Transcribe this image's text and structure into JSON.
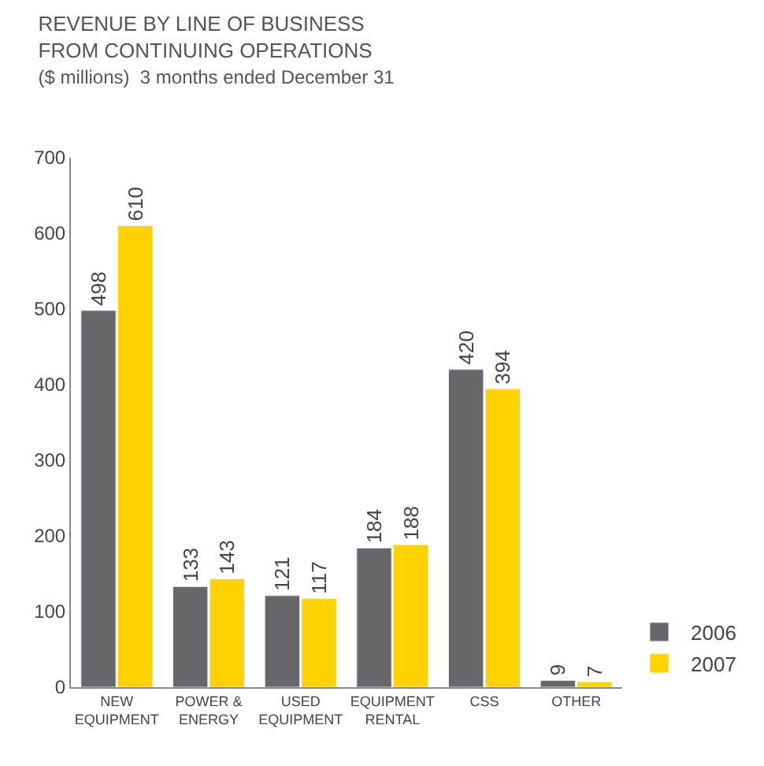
{
  "chart_data": {
    "type": "bar",
    "title": "REVENUE BY LINE OF BUSINESS\nFROM CONTINUING OPERATIONS",
    "subtitle": "($ millions)  3 months ended December 31",
    "categories": [
      "NEW EQUIPMENT",
      "POWER & ENERGY",
      "USED EQUIPMENT",
      "EQUIPMENT RENTAL",
      "CSS",
      "OTHER"
    ],
    "series": [
      {
        "name": "2006",
        "color": "#66666b",
        "values": [
          498,
          133,
          121,
          184,
          420,
          9
        ]
      },
      {
        "name": "2007",
        "color": "#ffd200",
        "values": [
          610,
          143,
          117,
          188,
          394,
          7
        ]
      }
    ],
    "ylim": [
      0,
      700
    ],
    "yticks": [
      0,
      100,
      200,
      300,
      400,
      500,
      600,
      700
    ],
    "legend": "bottom right",
    "data_labels": true
  }
}
